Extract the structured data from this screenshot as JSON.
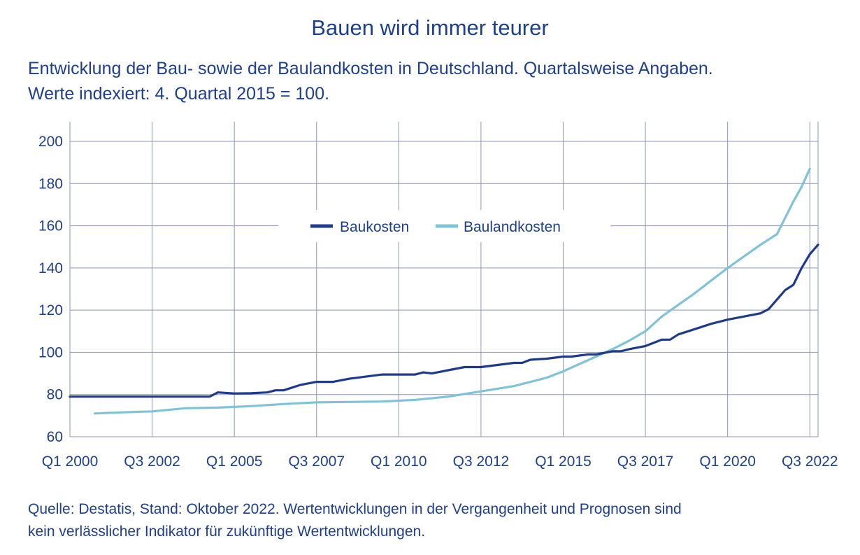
{
  "title": "Bauen wird immer teurer",
  "subtitle_line1": "Entwicklung der Bau- sowie der Baulandkosten in Deutschland. Quartalsweise Angaben.",
  "subtitle_line2": "Werte indexiert: 4. Quartal 2015 = 100.",
  "source_line1": "Quelle: Destatis, Stand: Oktober 2022. Wertentwicklungen in der Vergangenheit und Prognosen sind",
  "source_line2": "kein verlässlicher Indikator für zukünftige Wertentwicklungen.",
  "colors": {
    "baukosten": "#1e3a8a",
    "baulandkosten": "#7fc3d8",
    "grid": "#8e96b8",
    "text": "#1e3f8c"
  },
  "chart_data": {
    "type": "line",
    "x_unit": "quarter (fractional year)",
    "xlim": [
      2000.0,
      2022.75
    ],
    "ylim": [
      60,
      200
    ],
    "yticks": [
      60,
      80,
      100,
      120,
      140,
      160,
      180,
      200
    ],
    "xticks": [
      {
        "x": 2000.0,
        "label": "Q1 2000"
      },
      {
        "x": 2002.5,
        "label": "Q3 2002"
      },
      {
        "x": 2005.0,
        "label": "Q1 2005"
      },
      {
        "x": 2007.5,
        "label": "Q3 2007"
      },
      {
        "x": 2010.0,
        "label": "Q1 2010"
      },
      {
        "x": 2012.5,
        "label": "Q3 2012"
      },
      {
        "x": 2015.0,
        "label": "Q1 2015"
      },
      {
        "x": 2017.5,
        "label": "Q3 2017"
      },
      {
        "x": 2020.0,
        "label": "Q1 2020"
      },
      {
        "x": 2022.5,
        "label": "Q3 2022"
      }
    ],
    "grid": true,
    "legend_position": "center-top",
    "series": [
      {
        "name": "Baukosten",
        "points": [
          [
            2000.0,
            79.0
          ],
          [
            2001.0,
            79.0
          ],
          [
            2002.0,
            79.0
          ],
          [
            2003.0,
            79.0
          ],
          [
            2004.0,
            79.0
          ],
          [
            2004.25,
            79.0
          ],
          [
            2004.5,
            81.0
          ],
          [
            2005.0,
            80.5
          ],
          [
            2005.5,
            80.6
          ],
          [
            2006.0,
            81.0
          ],
          [
            2006.25,
            82.0
          ],
          [
            2006.5,
            82.0
          ],
          [
            2007.0,
            84.5
          ],
          [
            2007.5,
            86.0
          ],
          [
            2008.0,
            86.0
          ],
          [
            2008.5,
            87.5
          ],
          [
            2009.0,
            88.5
          ],
          [
            2009.5,
            89.5
          ],
          [
            2010.0,
            89.5
          ],
          [
            2010.5,
            89.5
          ],
          [
            2010.75,
            90.5
          ],
          [
            2011.0,
            90.0
          ],
          [
            2011.5,
            91.5
          ],
          [
            2012.0,
            93.0
          ],
          [
            2012.5,
            93.0
          ],
          [
            2013.0,
            94.0
          ],
          [
            2013.5,
            95.0
          ],
          [
            2013.75,
            95.0
          ],
          [
            2014.0,
            96.5
          ],
          [
            2014.5,
            97.0
          ],
          [
            2015.0,
            98.0
          ],
          [
            2015.25,
            98.0
          ],
          [
            2015.75,
            99.0
          ],
          [
            2016.0,
            99.0
          ],
          [
            2016.5,
            100.5
          ],
          [
            2016.75,
            100.5
          ],
          [
            2017.0,
            101.5
          ],
          [
            2017.5,
            103.0
          ],
          [
            2017.75,
            104.5
          ],
          [
            2018.0,
            106.0
          ],
          [
            2018.25,
            106.0
          ],
          [
            2018.5,
            108.5
          ],
          [
            2019.0,
            111.0
          ],
          [
            2019.5,
            113.5
          ],
          [
            2020.0,
            115.5
          ],
          [
            2020.5,
            117.0
          ],
          [
            2021.0,
            118.5
          ],
          [
            2021.25,
            120.5
          ],
          [
            2021.5,
            125.0
          ],
          [
            2021.75,
            129.5
          ],
          [
            2022.0,
            132.0
          ],
          [
            2022.25,
            140.0
          ],
          [
            2022.5,
            146.5
          ],
          [
            2022.75,
            151.0
          ]
        ]
      },
      {
        "name": "Baulandkosten",
        "points": [
          [
            2000.75,
            71.0
          ],
          [
            2001.5,
            71.5
          ],
          [
            2002.5,
            72.0
          ],
          [
            2003.5,
            73.5
          ],
          [
            2004.5,
            73.8
          ],
          [
            2005.5,
            74.5
          ],
          [
            2006.5,
            75.5
          ],
          [
            2007.5,
            76.3
          ],
          [
            2008.5,
            76.5
          ],
          [
            2009.5,
            76.7
          ],
          [
            2010.5,
            77.5
          ],
          [
            2011.5,
            79.0
          ],
          [
            2012.5,
            81.5
          ],
          [
            2013.5,
            84.0
          ],
          [
            2014.5,
            88.0
          ],
          [
            2015.0,
            91.0
          ],
          [
            2015.5,
            94.5
          ],
          [
            2016.0,
            98.0
          ],
          [
            2016.5,
            101.5
          ],
          [
            2017.0,
            105.5
          ],
          [
            2017.5,
            110.0
          ],
          [
            2018.0,
            117.0
          ],
          [
            2018.5,
            122.5
          ],
          [
            2019.0,
            128.0
          ],
          [
            2019.5,
            134.0
          ],
          [
            2020.0,
            140.0
          ],
          [
            2020.5,
            145.5
          ],
          [
            2021.0,
            151.0
          ],
          [
            2021.5,
            156.0
          ],
          [
            2022.0,
            171.5
          ],
          [
            2022.25,
            178.5
          ],
          [
            2022.5,
            187.0
          ]
        ]
      }
    ]
  }
}
